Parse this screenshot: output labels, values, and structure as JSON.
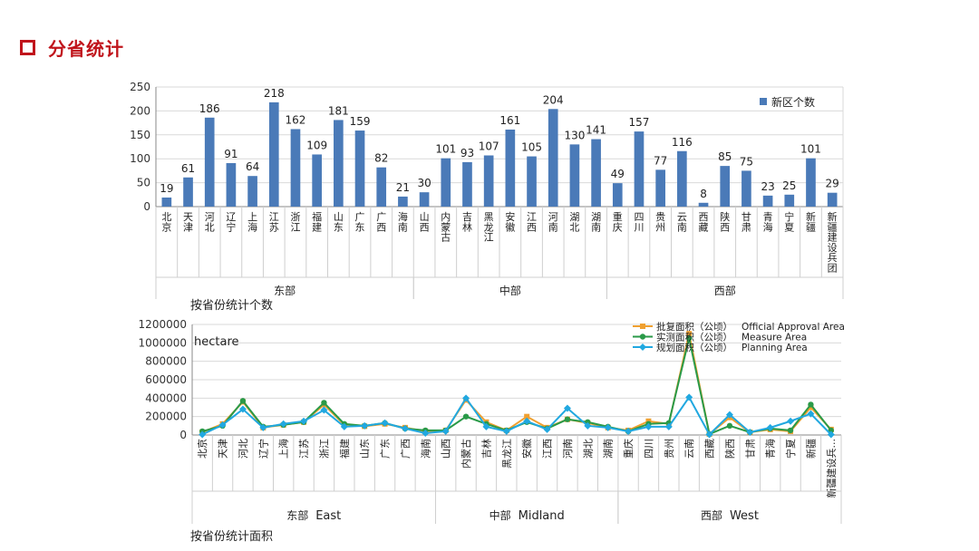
{
  "page": {
    "title": "分省统计",
    "accent": "#c0141b"
  },
  "chart_data": [
    {
      "type": "bar",
      "caption": "按省份统计个数",
      "categories": [
        "北京",
        "天津",
        "河北",
        "辽宁",
        "上海",
        "江苏",
        "浙江",
        "福建",
        "山东",
        "广东",
        "广西",
        "海南",
        "山西",
        "内蒙古",
        "吉林",
        "黑龙江",
        "安徽",
        "江西",
        "河南",
        "湖北",
        "湖南",
        "重庆",
        "四川",
        "贵州",
        "云南",
        "西藏",
        "陕西",
        "甘肃",
        "青海",
        "宁夏",
        "新疆",
        "新疆建设兵团"
      ],
      "series": [
        {
          "name": "新区个数",
          "color": "#4a7ab8",
          "values": [
            19,
            61,
            186,
            91,
            64,
            218,
            162,
            109,
            181,
            159,
            82,
            21,
            30,
            101,
            93,
            107,
            161,
            105,
            204,
            130,
            141,
            49,
            157,
            77,
            116,
            8,
            85,
            75,
            23,
            25,
            101,
            29
          ]
        }
      ],
      "groups": [
        {
          "label": "东部",
          "start": 0,
          "end": 11
        },
        {
          "label": "中部",
          "start": 12,
          "end": 20
        },
        {
          "label": "西部",
          "start": 21,
          "end": 31
        }
      ],
      "ylim": [
        0,
        250
      ],
      "yticks": [
        0,
        50,
        100,
        150,
        200,
        250
      ],
      "grid": true,
      "legend": "top-right"
    },
    {
      "type": "line",
      "caption": "按省份统计面积",
      "unit": "hectare",
      "categories": [
        "北京",
        "天津",
        "河北",
        "辽宁",
        "上海",
        "江苏",
        "浙江",
        "福建",
        "山东",
        "广东",
        "广西",
        "海南",
        "山西",
        "内蒙古",
        "吉林",
        "黑龙江",
        "安徽",
        "江西",
        "河南",
        "湖北",
        "湖南",
        "重庆",
        "四川",
        "贵州",
        "云南",
        "西藏",
        "陕西",
        "甘肃",
        "青海",
        "宁夏",
        "新疆",
        "新疆建设兵..."
      ],
      "series": [
        {
          "name": "批复面积（公顷）",
          "name_en": "Official Approval Area",
          "color": "#f0a030",
          "marker": "square",
          "values": [
            30000,
            120000,
            360000,
            80000,
            110000,
            140000,
            330000,
            110000,
            95000,
            120000,
            80000,
            40000,
            50000,
            380000,
            140000,
            50000,
            200000,
            80000,
            170000,
            130000,
            80000,
            50000,
            150000,
            120000,
            1100000,
            10000,
            190000,
            30000,
            60000,
            40000,
            300000,
            60000
          ]
        },
        {
          "name": "实测面积（公顷）",
          "name_en": "Measure Area",
          "color": "#2a9a48",
          "marker": "circle",
          "values": [
            40000,
            100000,
            370000,
            90000,
            110000,
            140000,
            350000,
            120000,
            100000,
            130000,
            70000,
            50000,
            50000,
            200000,
            120000,
            50000,
            140000,
            70000,
            170000,
            140000,
            90000,
            40000,
            120000,
            130000,
            1050000,
            10000,
            100000,
            30000,
            70000,
            50000,
            330000,
            50000
          ]
        },
        {
          "name": "规划面积（公顷）",
          "name_en": "Planning Area",
          "color": "#21a8e0",
          "marker": "diamond",
          "values": [
            5000,
            110000,
            280000,
            80000,
            120000,
            150000,
            270000,
            90000,
            100000,
            130000,
            70000,
            20000,
            40000,
            400000,
            90000,
            40000,
            150000,
            60000,
            290000,
            100000,
            80000,
            40000,
            90000,
            90000,
            410000,
            5000,
            220000,
            30000,
            80000,
            150000,
            230000,
            5000
          ]
        }
      ],
      "groups": [
        {
          "label": "东部",
          "label_en": "East",
          "start": 0,
          "end": 11
        },
        {
          "label": "中部",
          "label_en": "Midland",
          "start": 12,
          "end": 20
        },
        {
          "label": "西部",
          "label_en": "West",
          "start": 21,
          "end": 31
        }
      ],
      "ylim": [
        0,
        1200000
      ],
      "yticks": [
        0,
        200000,
        400000,
        600000,
        800000,
        1000000,
        1200000
      ],
      "grid": true,
      "legend": "top-right"
    }
  ]
}
